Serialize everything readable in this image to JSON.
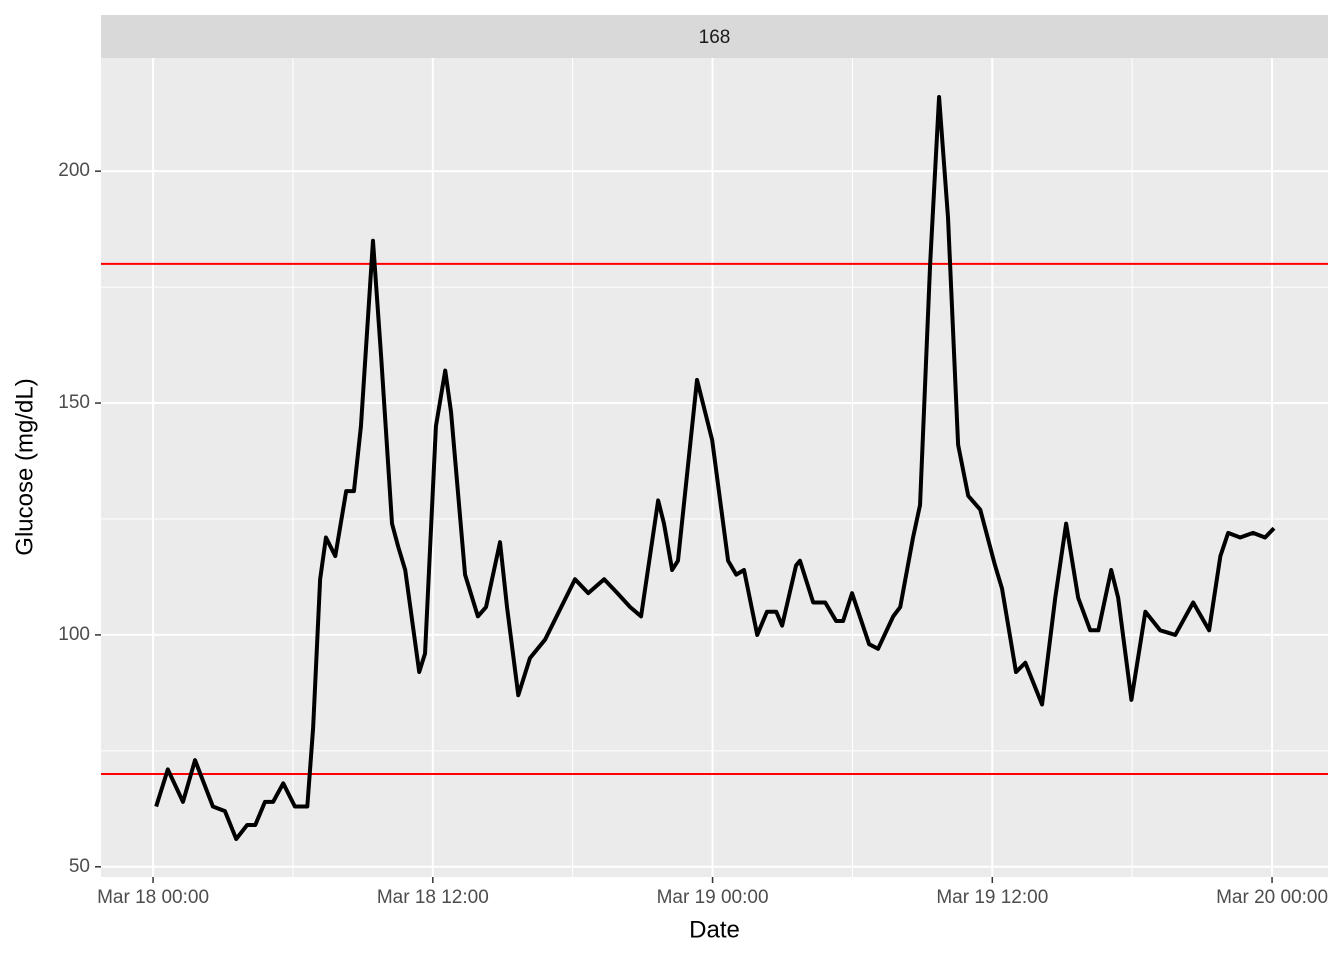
{
  "chart_data": {
    "type": "line",
    "facet_label": "168",
    "xlabel": "Date",
    "ylabel": "Glucose (mg/dL)",
    "xlim": [
      "Mar 17 21:46",
      "Mar 20 02:24"
    ],
    "xticks": [
      "Mar 18 00:00",
      "Mar 18 12:00",
      "Mar 19 00:00",
      "Mar 19 12:00",
      "Mar 20 00:00"
    ],
    "minor_xticks": [
      "Mar 18 06:00",
      "Mar 18 18:00",
      "Mar 19 06:00",
      "Mar 19 18:00"
    ],
    "ylim": [
      47.8,
      224.4
    ],
    "yticks": [
      50,
      100,
      150,
      200
    ],
    "minor_yticks": [
      75,
      125,
      175
    ],
    "grid": true,
    "hlines": [
      70,
      180
    ],
    "hline_color": "#ff0000",
    "x": [
      "Mar 18 00:08",
      "Mar 18 00:38",
      "Mar 18 01:17",
      "Mar 18 01:48",
      "Mar 18 02:34",
      "Mar 18 03:05",
      "Mar 18 03:34",
      "Mar 18 04:02",
      "Mar 18 04:23",
      "Mar 18 04:48",
      "Mar 18 05:09",
      "Mar 18 05:35",
      "Mar 18 06:05",
      "Mar 18 06:37",
      "Mar 18 06:52",
      "Mar 18 07:10",
      "Mar 18 07:25",
      "Mar 18 07:49",
      "Mar 18 08:17",
      "Mar 18 08:37",
      "Mar 18 08:55",
      "Mar 18 09:26",
      "Mar 18 09:47",
      "Mar 18 10:15",
      "Mar 18 10:31",
      "Mar 18 10:49",
      "Mar 18 11:25",
      "Mar 18 11:40",
      "Mar 18 12:08",
      "Mar 18 12:32",
      "Mar 18 12:47",
      "Mar 18 13:23",
      "Mar 18 13:56",
      "Mar 18 14:17",
      "Mar 18 14:53",
      "Mar 18 15:11",
      "Mar 18 15:40",
      "Mar 18 16:10",
      "Mar 18 16:49",
      "Mar 18 18:06",
      "Mar 18 18:40",
      "Mar 18 19:21",
      "Mar 18 19:55",
      "Mar 18 20:28",
      "Mar 18 20:56",
      "Mar 18 21:40",
      "Mar 18 21:55",
      "Mar 18 22:16",
      "Mar 18 22:31",
      "Mar 18 23:20",
      "Mar 18 23:59",
      "Mar 19 00:40",
      "Mar 19 01:01",
      "Mar 19 01:21",
      "Mar 19 01:55",
      "Mar 19 02:20",
      "Mar 19 02:44",
      "Mar 19 02:59",
      "Mar 19 03:35",
      "Mar 19 03:45",
      "Mar 19 04:19",
      "Mar 19 04:50",
      "Mar 19 05:18",
      "Mar 19 05:36",
      "Mar 19 05:59",
      "Mar 19 06:43",
      "Mar 19 07:06",
      "Mar 19 07:45",
      "Mar 19 08:03",
      "Mar 19 08:36",
      "Mar 19 08:54",
      "Mar 19 09:20",
      "Mar 19 09:43",
      "Mar 19 10:06",
      "Mar 19 10:32",
      "Mar 19 10:58",
      "Mar 19 11:29",
      "Mar 19 12:07",
      "Mar 19 12:25",
      "Mar 19 13:01",
      "Mar 19 13:25",
      "Mar 19 14:08",
      "Mar 19 14:42",
      "Mar 19 15:10",
      "Mar 19 15:41",
      "Mar 19 16:12",
      "Mar 19 16:33",
      "Mar 19 17:06",
      "Mar 19 17:24",
      "Mar 19 17:58",
      "Mar 19 18:34",
      "Mar 19 19:12",
      "Mar 19 19:51",
      "Mar 19 20:37",
      "Mar 19 21:18",
      "Mar 19 21:47",
      "Mar 19 22:07",
      "Mar 19 22:38",
      "Mar 19 23:11",
      "Mar 19 23:42",
      "Mar 20 00:05"
    ],
    "series": [
      {
        "color": "#000000",
        "values": [
          63,
          71,
          64,
          73,
          63,
          62,
          56,
          59,
          59,
          64,
          64,
          68,
          63,
          63,
          80,
          112,
          121,
          117,
          131,
          131,
          145,
          185,
          160,
          124,
          119,
          114,
          92,
          96,
          145,
          157,
          148,
          113,
          104,
          106,
          120,
          106,
          87,
          95,
          99,
          112,
          109,
          112,
          109,
          106,
          104,
          129,
          124,
          114,
          116,
          155,
          142,
          116,
          113,
          114,
          100,
          105,
          105,
          102,
          115,
          116,
          107,
          107,
          103,
          103,
          109,
          98,
          97,
          104,
          106,
          121,
          128,
          180,
          216,
          190,
          141,
          130,
          127,
          115,
          110,
          92,
          94,
          85,
          108,
          124,
          108,
          101,
          101,
          114,
          108,
          86,
          105,
          101,
          100,
          107,
          101,
          117,
          122,
          121,
          122,
          121,
          123
        ]
      }
    ]
  }
}
